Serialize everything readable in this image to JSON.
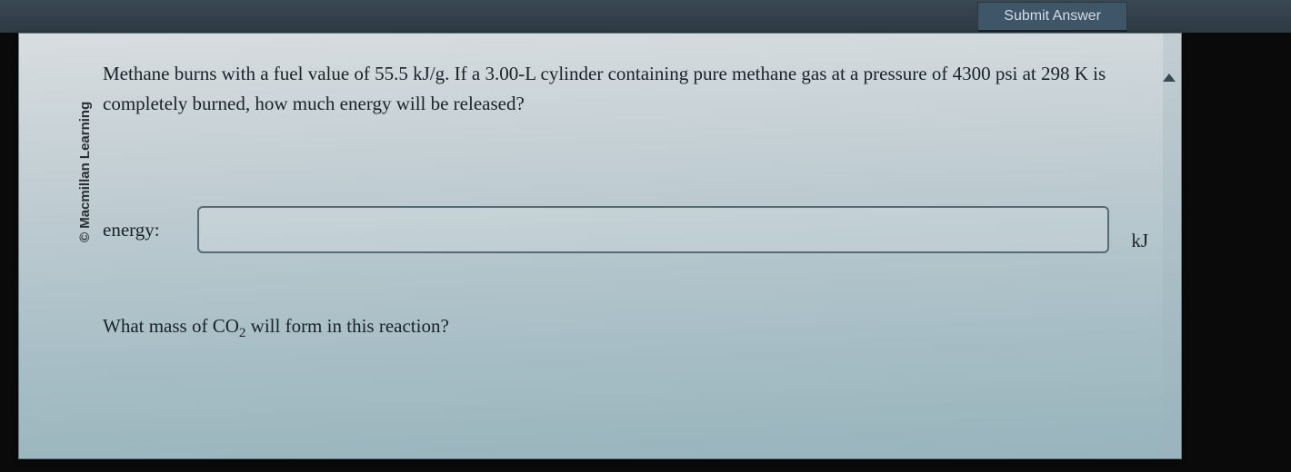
{
  "header": {
    "submit_label": "Submit Answer"
  },
  "copyright": "© Macmillan Learning",
  "question1": "Methane burns with a fuel value of 55.5 kJ/g. If a 3.00-L cylinder containing pure methane gas at a pressure of 4300 psi at 298 K is completely burned, how much energy will be released?",
  "answer1": {
    "label": "energy:",
    "value": "",
    "unit": "kJ"
  },
  "question2_prefix": "What mass of CO",
  "question2_sub": "2",
  "question2_suffix": " will form in this reaction?",
  "colors": {
    "top_bar": "#2d3943",
    "submit_bg": "#3f5568",
    "submit_fg": "#d0dde6",
    "panel_top": "#d8dde0",
    "panel_bottom": "#98b4bc",
    "text": "#1a2228",
    "input_border": "#5a6a72"
  }
}
